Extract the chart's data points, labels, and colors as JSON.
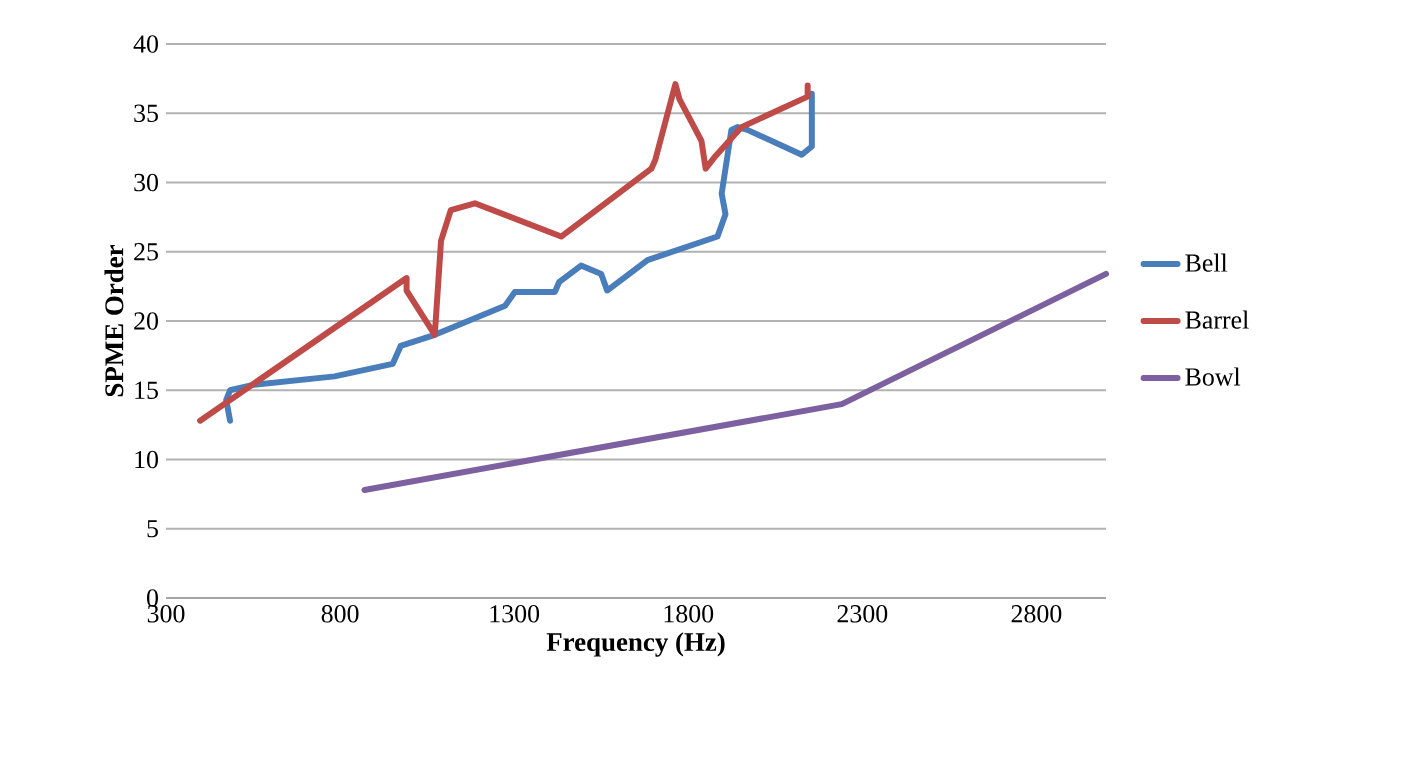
{
  "chart_data": {
    "type": "line",
    "xlabel": "Frequency (Hz)",
    "ylabel": "SPME Order",
    "xlim": [
      300,
      3000
    ],
    "xticks": [
      300,
      800,
      1300,
      1800,
      2300,
      2800
    ],
    "ylim": [
      0,
      40
    ],
    "yticks": [
      0,
      5,
      10,
      15,
      20,
      25,
      30,
      35,
      40
    ],
    "grid": "y",
    "legend": "right",
    "line_style": "solid",
    "marker": "none",
    "series": [
      {
        "name": "Bell",
        "color": "#4a7ebb",
        "x": [
          484,
          473,
          484,
          553,
          784,
          951,
          974,
          1072,
          1274,
          1302,
          1417,
          1429,
          1492,
          1550,
          1567,
          1683,
          1884,
          1907,
          1896,
          1924,
          1942,
          1970,
          2126,
          2155,
          2155
        ],
        "values": [
          12.8,
          14.3,
          15,
          15.4,
          16,
          16.9,
          18.2,
          19,
          21.1,
          22.1,
          22.1,
          22.8,
          24,
          23.4,
          22.2,
          24.4,
          26.1,
          27.7,
          29.2,
          33.8,
          34,
          33.8,
          32,
          32.6,
          36.4
        ]
      },
      {
        "name": "Barrel",
        "color": "#be4b48",
        "x": [
          398,
          991,
          991,
          1072,
          1090,
          1118,
          1187,
          1435,
          1694,
          1705,
          1763,
          1775,
          1838,
          1850,
          1878,
          1953,
          2143,
          2143
        ],
        "values": [
          12.8,
          23.1,
          22.2,
          19,
          25.8,
          28,
          28.5,
          26.1,
          31,
          31.6,
          37.1,
          36,
          33,
          31,
          31.9,
          34,
          36.2,
          37
        ]
      },
      {
        "name": "Bowl",
        "color": "#7d60a0",
        "x": [
          870,
          2241,
          3000
        ],
        "values": [
          7.8,
          14,
          23.4
        ]
      }
    ]
  }
}
